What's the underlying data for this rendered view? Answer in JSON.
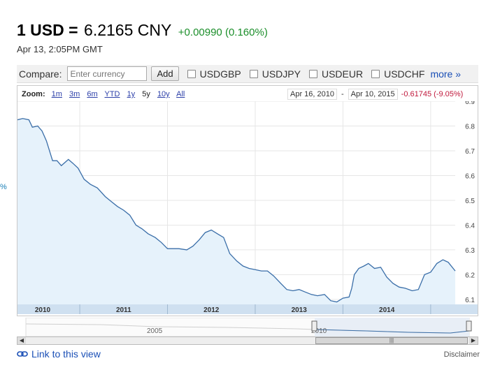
{
  "quote": {
    "base": "1 USD =",
    "rate": "6.2165 CNY",
    "change": "+0.00990 (0.160%)",
    "timestamp": "Apr 13, 2:05PM GMT"
  },
  "compare": {
    "label": "Compare:",
    "placeholder": "Enter currency",
    "add_label": "Add",
    "options": [
      "USDGBP",
      "USDJPY",
      "USDEUR",
      "USDCHF"
    ],
    "more_label": "more »"
  },
  "zoom": {
    "label": "Zoom:",
    "options": [
      "1m",
      "3m",
      "6m",
      "YTD",
      "1y",
      "5y",
      "10y",
      "All"
    ],
    "selected": "5y"
  },
  "range": {
    "start": "Apr 16, 2010",
    "separator": "-",
    "end": "Apr 10, 2015",
    "change": "-0.61745 (-9.05%)"
  },
  "nav": {
    "labels": [
      "2005",
      "2010"
    ]
  },
  "footer": {
    "link_label": "Link to this view",
    "disclaimer": "Disclaimer"
  },
  "edge_label": "%",
  "colors": {
    "line": "#3a6ea8",
    "area": "#e6f2fb",
    "positive": "#1b8e2a",
    "negative": "#c0193c",
    "link": "#1a4fb6"
  },
  "chart_data": {
    "type": "area",
    "title": "",
    "xlabel": "",
    "ylabel": "",
    "x_tick_labels": [
      "2010",
      "2011",
      "2012",
      "2013",
      "2014"
    ],
    "y_tick_labels": [
      "6.1",
      "6.2",
      "6.3",
      "6.4",
      "6.5",
      "6.6",
      "6.7",
      "6.8",
      "6.9"
    ],
    "ylim": [
      6.08,
      6.9
    ],
    "xlim": [
      2010.29,
      2015.28
    ],
    "grid": true,
    "series": [
      {
        "values": [
          [
            2010.29,
            6.825
          ],
          [
            2010.35,
            6.83
          ],
          [
            2010.42,
            6.825
          ],
          [
            2010.46,
            6.795
          ],
          [
            2010.52,
            6.8
          ],
          [
            2010.57,
            6.78
          ],
          [
            2010.62,
            6.74
          ],
          [
            2010.69,
            6.66
          ],
          [
            2010.74,
            6.66
          ],
          [
            2010.79,
            6.64
          ],
          [
            2010.87,
            6.665
          ],
          [
            2010.92,
            6.65
          ],
          [
            2010.98,
            6.63
          ],
          [
            2011.05,
            6.585
          ],
          [
            2011.12,
            6.565
          ],
          [
            2011.2,
            6.55
          ],
          [
            2011.29,
            6.515
          ],
          [
            2011.36,
            6.495
          ],
          [
            2011.43,
            6.475
          ],
          [
            2011.5,
            6.46
          ],
          [
            2011.57,
            6.44
          ],
          [
            2011.64,
            6.4
          ],
          [
            2011.71,
            6.385
          ],
          [
            2011.78,
            6.365
          ],
          [
            2011.86,
            6.35
          ],
          [
            2011.93,
            6.33
          ],
          [
            2012.0,
            6.305
          ],
          [
            2012.06,
            6.305
          ],
          [
            2012.13,
            6.305
          ],
          [
            2012.22,
            6.3
          ],
          [
            2012.29,
            6.315
          ],
          [
            2012.36,
            6.34
          ],
          [
            2012.43,
            6.37
          ],
          [
            2012.5,
            6.38
          ],
          [
            2012.57,
            6.365
          ],
          [
            2012.64,
            6.35
          ],
          [
            2012.71,
            6.285
          ],
          [
            2012.79,
            6.255
          ],
          [
            2012.86,
            6.235
          ],
          [
            2012.93,
            6.225
          ],
          [
            2013.0,
            6.22
          ],
          [
            2013.07,
            6.215
          ],
          [
            2013.14,
            6.215
          ],
          [
            2013.21,
            6.195
          ],
          [
            2013.29,
            6.165
          ],
          [
            2013.36,
            6.14
          ],
          [
            2013.43,
            6.135
          ],
          [
            2013.5,
            6.14
          ],
          [
            2013.57,
            6.13
          ],
          [
            2013.64,
            6.12
          ],
          [
            2013.71,
            6.115
          ],
          [
            2013.79,
            6.12
          ],
          [
            2013.86,
            6.095
          ],
          [
            2013.93,
            6.09
          ],
          [
            2014.0,
            6.105
          ],
          [
            2014.07,
            6.11
          ],
          [
            2014.1,
            6.145
          ],
          [
            2014.13,
            6.2
          ],
          [
            2014.18,
            6.225
          ],
          [
            2014.24,
            6.235
          ],
          [
            2014.29,
            6.245
          ],
          [
            2014.36,
            6.225
          ],
          [
            2014.43,
            6.23
          ],
          [
            2014.5,
            6.19
          ],
          [
            2014.57,
            6.165
          ],
          [
            2014.64,
            6.15
          ],
          [
            2014.71,
            6.145
          ],
          [
            2014.79,
            6.135
          ],
          [
            2014.86,
            6.14
          ],
          [
            2014.93,
            6.2
          ],
          [
            2015.0,
            6.21
          ],
          [
            2015.07,
            6.245
          ],
          [
            2015.14,
            6.26
          ],
          [
            2015.2,
            6.25
          ],
          [
            2015.28,
            6.215
          ]
        ]
      }
    ]
  }
}
